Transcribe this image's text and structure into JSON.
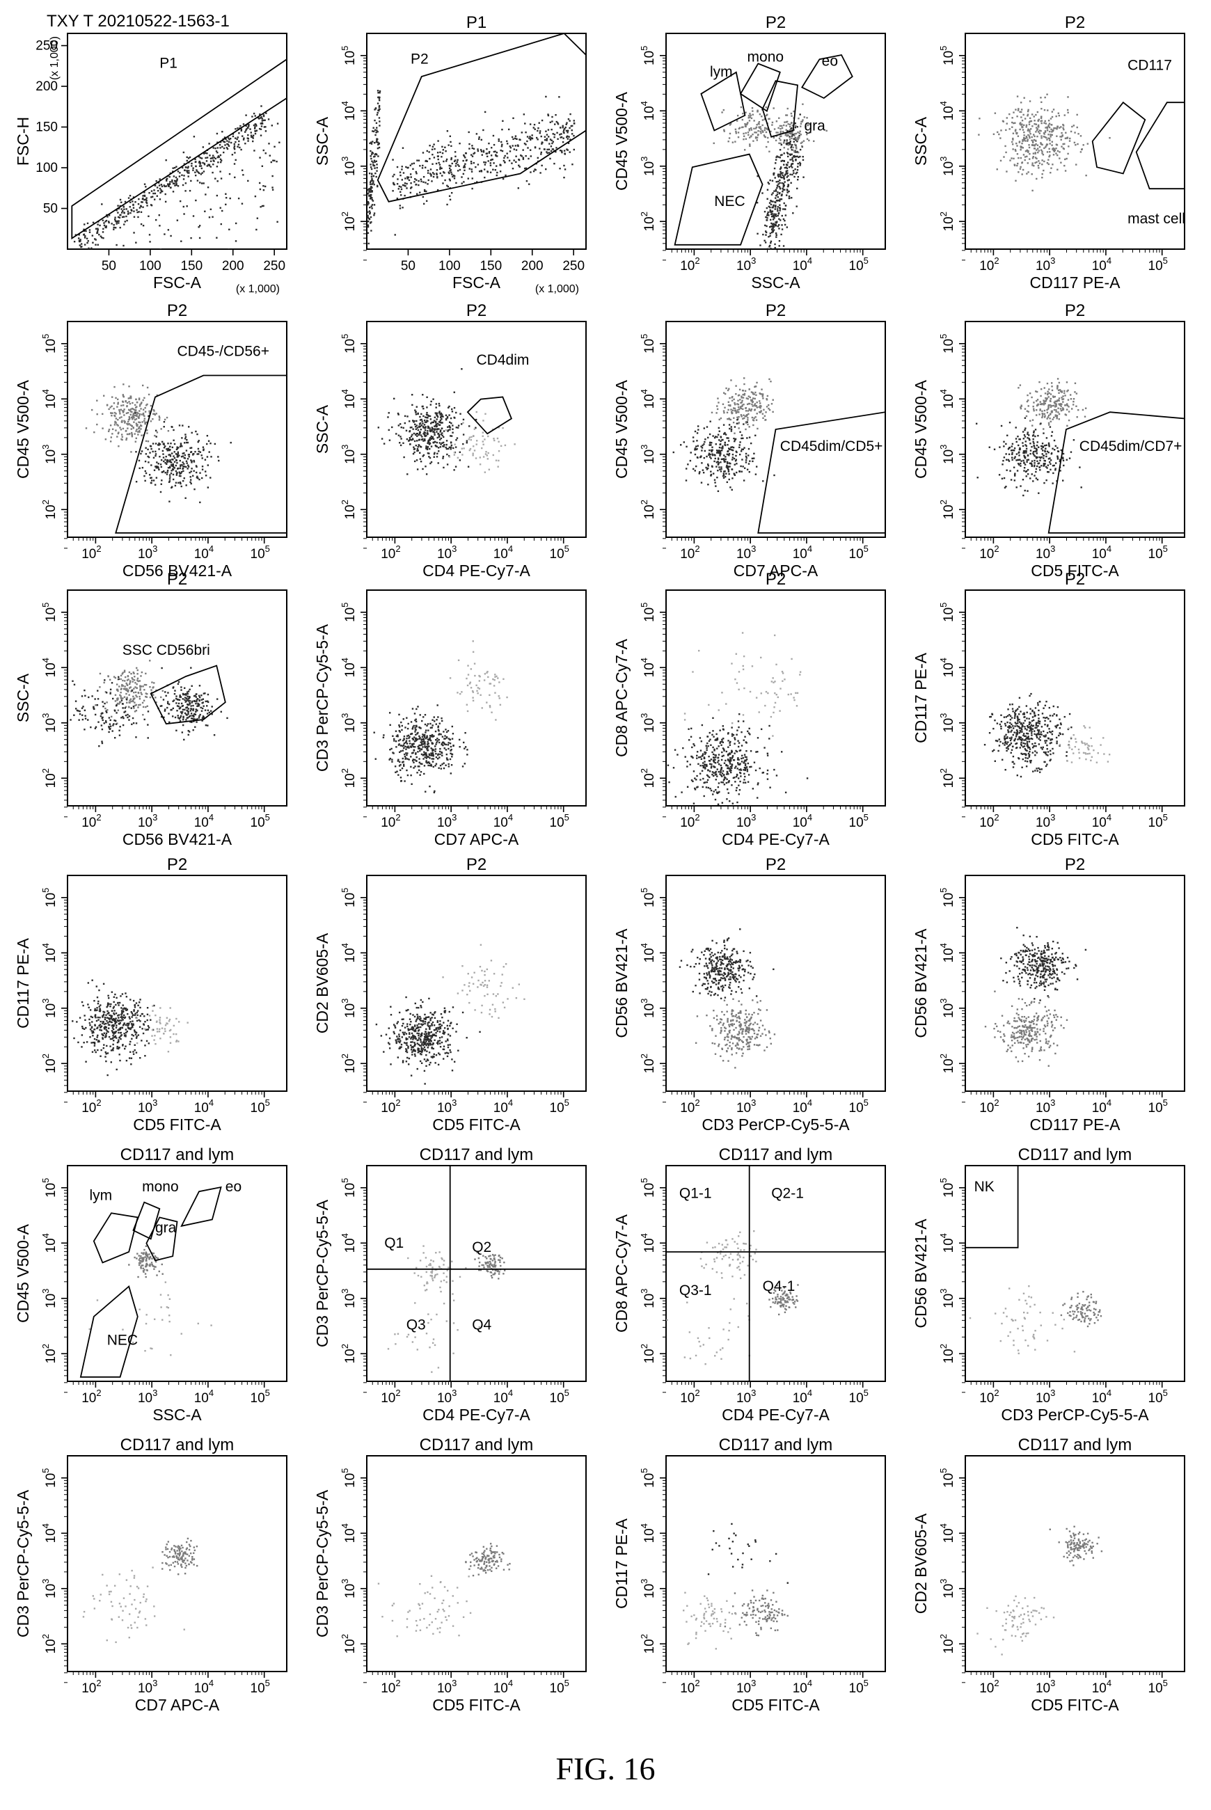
{
  "figure_label": "FIG. 16",
  "sample_id": "TXY T 20210522-1563-1",
  "colors": {
    "ink": "#000000",
    "population_dark": "#2a2a2a",
    "population_gray": "#7a7a7a",
    "population_light": "#a8a8a8"
  },
  "chart_data": [
    {
      "type": "scatter",
      "title": "",
      "xlabel": "FSC-A",
      "ylabel": "FSC-H",
      "scale": "linear",
      "xticks": [
        "50",
        "100",
        "150",
        "200",
        "250"
      ],
      "yticks": [
        "50",
        "100",
        "150",
        "200",
        "250"
      ],
      "xmult": "(x 1,000)",
      "ymult": "(x 1,000)",
      "gates": [
        "P1"
      ],
      "populations": [
        {
          "shade": "dark",
          "x": [
            10,
            240
          ],
          "y": [
            8,
            160
          ],
          "spread": 8,
          "n": 420
        },
        {
          "shade": "dark",
          "x": [
            60,
            250
          ],
          "y": [
            10,
            110
          ],
          "spread": 40,
          "n": 140
        }
      ]
    },
    {
      "type": "scatter",
      "title": "P1",
      "xlabel": "FSC-A",
      "ylabel": "SSC-A",
      "scale": "lin-log",
      "xticks": [
        "50",
        "100",
        "150",
        "200",
        "250"
      ],
      "yticks": [
        "10^2",
        "10^3",
        "10^4",
        "10^5"
      ],
      "xmult": "(x 1,000)",
      "gates": [
        "P2"
      ],
      "populations": [
        {
          "shade": "dark",
          "x": [
            30,
            250
          ],
          "y": [
            2.7,
            3.6
          ],
          "spread": 0.25,
          "n": 500
        },
        {
          "shade": "dark",
          "x": [
            0,
            15
          ],
          "y": [
            2,
            4
          ],
          "spread": 0.4,
          "n": 160
        }
      ]
    },
    {
      "type": "scatter",
      "title": "P2",
      "xlabel": "SSC-A",
      "ylabel": "CD45 V500-A",
      "scale": "log",
      "xticks": [
        "10^2",
        "10^3",
        "10^4",
        "10^5"
      ],
      "yticks": [
        "10^2",
        "10^3",
        "10^4",
        "10^5"
      ],
      "gates": [
        "lym",
        "mono",
        "eo",
        "gra",
        "NEC"
      ],
      "populations": [
        {
          "shade": "gray",
          "x": [
            3.0
          ],
          "y": [
            3.7
          ],
          "spread": 0.2,
          "n": 120
        },
        {
          "shade": "dark",
          "x": [
            3.3,
            3.8
          ],
          "y": [
            1.8,
            3.5
          ],
          "spread": 0.3,
          "n": 350
        },
        {
          "shade": "gray",
          "x": [
            3.7
          ],
          "y": [
            3.6
          ],
          "spread": 0.18,
          "n": 120
        }
      ]
    },
    {
      "type": "scatter",
      "title": "P2",
      "xlabel": "CD117 PE-A",
      "ylabel": "SSC-A",
      "scale": "log",
      "xticks": [
        "10^2",
        "10^3",
        "10^4",
        "10^5"
      ],
      "yticks": [
        "10^2",
        "10^3",
        "10^4",
        "10^5"
      ],
      "gates": [
        "CD117",
        "mast cell"
      ],
      "populations": [
        {
          "shade": "gray",
          "x": [
            2.8
          ],
          "y": [
            3.5
          ],
          "spread": 0.35,
          "n": 380
        }
      ]
    },
    {
      "type": "scatter",
      "title": "P2",
      "xlabel": "CD56 BV421-A",
      "ylabel": "CD45 V500-A",
      "scale": "log",
      "xticks": [
        "10^2",
        "10^3",
        "10^4",
        "10^5"
      ],
      "yticks": [
        "10^2",
        "10^3",
        "10^4",
        "10^5"
      ],
      "gates": [
        "CD45-/CD56+"
      ],
      "populations": [
        {
          "shade": "gray",
          "x": [
            2.6
          ],
          "y": [
            3.7
          ],
          "spread": 0.25,
          "n": 250
        },
        {
          "shade": "dark",
          "x": [
            3.4
          ],
          "y": [
            2.9
          ],
          "spread": 0.3,
          "n": 300
        }
      ]
    },
    {
      "type": "scatter",
      "title": "P2",
      "xlabel": "CD4 PE-Cy7-A",
      "ylabel": "SSC-A",
      "scale": "log",
      "xticks": [
        "10^2",
        "10^3",
        "10^4",
        "10^5"
      ],
      "yticks": [
        "10^2",
        "10^3",
        "10^4",
        "10^5"
      ],
      "gates": [
        "CD4dim"
      ],
      "populations": [
        {
          "shade": "dark",
          "x": [
            2.6
          ],
          "y": [
            3.4
          ],
          "spread": 0.3,
          "n": 380
        },
        {
          "shade": "light",
          "x": [
            3.5
          ],
          "y": [
            3.2
          ],
          "spread": 0.25,
          "n": 60
        }
      ]
    },
    {
      "type": "scatter",
      "title": "P2",
      "xlabel": "CD7 APC-A",
      "ylabel": "CD45 V500-A",
      "scale": "log",
      "xticks": [
        "10^2",
        "10^3",
        "10^4",
        "10^5"
      ],
      "yticks": [
        "10^2",
        "10^3",
        "10^4",
        "10^5"
      ],
      "gates": [
        "CD45dim/CD5+"
      ],
      "populations": [
        {
          "shade": "gray",
          "x": [
            2.9
          ],
          "y": [
            3.9
          ],
          "spread": 0.22,
          "n": 200
        },
        {
          "shade": "dark",
          "x": [
            2.5
          ],
          "y": [
            3.0
          ],
          "spread": 0.3,
          "n": 280
        }
      ]
    },
    {
      "type": "scatter",
      "title": "P2",
      "xlabel": "CD5 FITC-A",
      "ylabel": "CD45 V500-A",
      "scale": "log",
      "xticks": [
        "10^2",
        "10^3",
        "10^4",
        "10^5"
      ],
      "yticks": [
        "10^2",
        "10^3",
        "10^4",
        "10^5"
      ],
      "gates": [
        "CD45dim/CD7+"
      ],
      "populations": [
        {
          "shade": "gray",
          "x": [
            3.0
          ],
          "y": [
            3.9
          ],
          "spread": 0.22,
          "n": 200
        },
        {
          "shade": "dark",
          "x": [
            2.7
          ],
          "y": [
            3.0
          ],
          "spread": 0.3,
          "n": 280
        }
      ]
    },
    {
      "type": "scatter",
      "title": "P2",
      "xlabel": "CD56 BV421-A",
      "ylabel": "SSC-A",
      "scale": "log",
      "xticks": [
        "10^2",
        "10^3",
        "10^4",
        "10^5"
      ],
      "yticks": [
        "10^2",
        "10^3",
        "10^4",
        "10^5"
      ],
      "gates": [
        "SSC CD56bri"
      ],
      "populations": [
        {
          "shade": "gray",
          "x": [
            2.6
          ],
          "y": [
            3.6
          ],
          "spread": 0.22,
          "n": 180
        },
        {
          "shade": "dark",
          "x": [
            3.6
          ],
          "y": [
            3.3
          ],
          "spread": 0.22,
          "n": 220
        },
        {
          "shade": "dark",
          "x": [
            2.2
          ],
          "y": [
            3.2
          ],
          "spread": 0.3,
          "n": 120
        }
      ]
    },
    {
      "type": "scatter",
      "title": "",
      "xlabel": "CD7 APC-A",
      "ylabel": "CD3 PerCP-Cy5-5-A",
      "scale": "log",
      "xticks": [
        "10^2",
        "10^3",
        "10^4",
        "10^5"
      ],
      "yticks": [
        "10^2",
        "10^3",
        "10^4",
        "10^5"
      ],
      "gates": [],
      "populations": [
        {
          "shade": "dark",
          "x": [
            2.5
          ],
          "y": [
            2.6
          ],
          "spread": 0.3,
          "n": 420
        },
        {
          "shade": "light",
          "x": [
            3.5
          ],
          "y": [
            3.6
          ],
          "spread": 0.3,
          "n": 60
        }
      ]
    },
    {
      "type": "scatter",
      "title": "P2",
      "xlabel": "CD4 PE-Cy7-A",
      "ylabel": "CD8 APC-Cy7-A",
      "scale": "log",
      "xticks": [
        "10^2",
        "10^3",
        "10^4",
        "10^5"
      ],
      "yticks": [
        "10^2",
        "10^3",
        "10^4",
        "10^5"
      ],
      "gates": [],
      "populations": [
        {
          "shade": "dark",
          "x": [
            2.5
          ],
          "y": [
            2.3
          ],
          "spread": 0.35,
          "n": 400
        },
        {
          "shade": "light",
          "x": [
            3.2
          ],
          "y": [
            3.6
          ],
          "spread": 0.5,
          "n": 60
        }
      ]
    },
    {
      "type": "scatter",
      "title": "P2",
      "xlabel": "CD5 FITC-A",
      "ylabel": "CD117 PE-A",
      "scale": "log",
      "xticks": [
        "10^2",
        "10^3",
        "10^4",
        "10^5"
      ],
      "yticks": [
        "10^2",
        "10^3",
        "10^4",
        "10^5"
      ],
      "gates": [],
      "populations": [
        {
          "shade": "dark",
          "x": [
            2.6
          ],
          "y": [
            2.8
          ],
          "spread": 0.3,
          "n": 420
        },
        {
          "shade": "light",
          "x": [
            3.6
          ],
          "y": [
            2.6
          ],
          "spread": 0.2,
          "n": 50
        }
      ]
    },
    {
      "type": "scatter",
      "title": "P2",
      "xlabel": "CD5 FITC-A",
      "ylabel": "CD117 PE-A",
      "scale": "log",
      "xticks": [
        "10^2",
        "10^3",
        "10^4",
        "10^5"
      ],
      "yticks": [
        "10^2",
        "10^3",
        "10^4",
        "10^5"
      ],
      "gates": [],
      "populations": [
        {
          "shade": "dark",
          "x": [
            2.3
          ],
          "y": [
            2.7
          ],
          "spread": 0.3,
          "n": 420
        },
        {
          "shade": "light",
          "x": [
            3.2
          ],
          "y": [
            2.7
          ],
          "spread": 0.2,
          "n": 50
        }
      ]
    },
    {
      "type": "scatter",
      "title": "P2",
      "xlabel": "CD5 FITC-A",
      "ylabel": "CD2 BV605-A",
      "scale": "log",
      "xticks": [
        "10^2",
        "10^3",
        "10^4",
        "10^5"
      ],
      "yticks": [
        "10^2",
        "10^3",
        "10^4",
        "10^5"
      ],
      "gates": [],
      "populations": [
        {
          "shade": "dark",
          "x": [
            2.5
          ],
          "y": [
            2.5
          ],
          "spread": 0.28,
          "n": 420
        },
        {
          "shade": "light",
          "x": [
            3.6
          ],
          "y": [
            3.4
          ],
          "spread": 0.3,
          "n": 60
        }
      ]
    },
    {
      "type": "scatter",
      "title": "P2",
      "xlabel": "CD3 PerCP-Cy5-5-A",
      "ylabel": "CD56 BV421-A",
      "scale": "log",
      "xticks": [
        "10^2",
        "10^3",
        "10^4",
        "10^5"
      ],
      "yticks": [
        "10^2",
        "10^3",
        "10^4",
        "10^5"
      ],
      "gates": [],
      "populations": [
        {
          "shade": "dark",
          "x": [
            2.5
          ],
          "y": [
            3.7
          ],
          "spread": 0.25,
          "n": 300
        },
        {
          "shade": "gray",
          "x": [
            2.8
          ],
          "y": [
            2.6
          ],
          "spread": 0.25,
          "n": 250
        }
      ]
    },
    {
      "type": "scatter",
      "title": "P2",
      "xlabel": "CD117 PE-A",
      "ylabel": "CD56 BV421-A",
      "scale": "log",
      "xticks": [
        "10^2",
        "10^3",
        "10^4",
        "10^5"
      ],
      "yticks": [
        "10^2",
        "10^3",
        "10^4",
        "10^5"
      ],
      "gates": [],
      "populations": [
        {
          "shade": "dark",
          "x": [
            2.8
          ],
          "y": [
            3.8
          ],
          "spread": 0.25,
          "n": 300
        },
        {
          "shade": "gray",
          "x": [
            2.6
          ],
          "y": [
            2.6
          ],
          "spread": 0.25,
          "n": 250
        }
      ]
    },
    {
      "type": "scatter",
      "title": "CD117 and lym",
      "xlabel": "SSC-A",
      "ylabel": "CD45 V500-A",
      "scale": "log",
      "xticks": [
        "10^2",
        "10^3",
        "10^4",
        "10^5"
      ],
      "yticks": [
        "10^2",
        "10^3",
        "10^4",
        "10^5"
      ],
      "gates": [
        "lym",
        "mono",
        "eo",
        "gra",
        "NEC"
      ],
      "populations": [
        {
          "shade": "gray",
          "x": [
            2.9
          ],
          "y": [
            3.7
          ],
          "spread": 0.12,
          "n": 90
        },
        {
          "shade": "light",
          "x": [
            3.0
          ],
          "y": [
            2.6
          ],
          "spread": 0.4,
          "n": 25
        }
      ]
    },
    {
      "type": "scatter",
      "title": "CD117 and lym",
      "xlabel": "CD4 PE-Cy7-A",
      "ylabel": "CD3 PerCP-Cy5-5-A",
      "scale": "log",
      "xticks": [
        "10^2",
        "10^3",
        "10^4",
        "10^5"
      ],
      "yticks": [
        "10^2",
        "10^3",
        "10^4",
        "10^5"
      ],
      "gates": [
        "Q1",
        "Q2",
        "Q3",
        "Q4"
      ],
      "populations": [
        {
          "shade": "light",
          "x": [
            2.7
          ],
          "y": [
            3.5
          ],
          "spread": 0.2,
          "n": 60
        },
        {
          "shade": "gray",
          "x": [
            3.7
          ],
          "y": [
            3.6
          ],
          "spread": 0.12,
          "n": 80
        },
        {
          "shade": "light",
          "x": [
            2.5
          ],
          "y": [
            2.5
          ],
          "spread": 0.4,
          "n": 30
        }
      ]
    },
    {
      "type": "scatter",
      "title": "CD117 and lym",
      "xlabel": "CD4 PE-Cy7-A",
      "ylabel": "CD8 APC-Cy7-A",
      "scale": "log",
      "xticks": [
        "10^2",
        "10^3",
        "10^4",
        "10^5"
      ],
      "yticks": [
        "10^2",
        "10^3",
        "10^4",
        "10^5"
      ],
      "gates": [
        "Q1-1",
        "Q2-1",
        "Q3-1",
        "Q4-1"
      ],
      "populations": [
        {
          "shade": "light",
          "x": [
            2.6
          ],
          "y": [
            3.8
          ],
          "spread": 0.22,
          "n": 70
        },
        {
          "shade": "gray",
          "x": [
            3.6
          ],
          "y": [
            3.0
          ],
          "spread": 0.12,
          "n": 80
        },
        {
          "shade": "light",
          "x": [
            2.4
          ],
          "y": [
            2.4
          ],
          "spread": 0.4,
          "n": 30
        }
      ]
    },
    {
      "type": "scatter",
      "title": "CD117 and lym",
      "xlabel": "CD3 PerCP-Cy5-5-A",
      "ylabel": "CD56 BV421-A",
      "scale": "log",
      "xticks": [
        "10^2",
        "10^3",
        "10^4",
        "10^5"
      ],
      "yticks": [
        "10^2",
        "10^3",
        "10^4",
        "10^5"
      ],
      "gates": [
        "NK"
      ],
      "populations": [
        {
          "shade": "gray",
          "x": [
            3.6
          ],
          "y": [
            2.8
          ],
          "spread": 0.15,
          "n": 90
        },
        {
          "shade": "light",
          "x": [
            2.6
          ],
          "y": [
            2.6
          ],
          "spread": 0.35,
          "n": 50
        }
      ]
    },
    {
      "type": "scatter",
      "title": "CD117 and lym",
      "xlabel": "CD7 APC-A",
      "ylabel": "CD3 PerCP-Cy5-5-A",
      "scale": "log",
      "xticks": [
        "10^2",
        "10^3",
        "10^4",
        "10^5"
      ],
      "yticks": [
        "10^2",
        "10^3",
        "10^4",
        "10^5"
      ],
      "gates": [],
      "populations": [
        {
          "shade": "gray",
          "x": [
            3.5
          ],
          "y": [
            3.6
          ],
          "spread": 0.15,
          "n": 110
        },
        {
          "shade": "light",
          "x": [
            2.5
          ],
          "y": [
            2.7
          ],
          "spread": 0.35,
          "n": 60
        }
      ]
    },
    {
      "type": "scatter",
      "title": "CD117 and lym",
      "xlabel": "CD5 FITC-A",
      "ylabel": "CD3 PerCP-Cy5-5-A",
      "scale": "log",
      "xticks": [
        "10^2",
        "10^3",
        "10^4",
        "10^5"
      ],
      "yticks": [
        "10^2",
        "10^3",
        "10^4",
        "10^5"
      ],
      "gates": [],
      "populations": [
        {
          "shade": "gray",
          "x": [
            3.6
          ],
          "y": [
            3.5
          ],
          "spread": 0.15,
          "n": 110
        },
        {
          "shade": "light",
          "x": [
            2.6
          ],
          "y": [
            2.6
          ],
          "spread": 0.35,
          "n": 60
        }
      ]
    },
    {
      "type": "scatter",
      "title": "CD117 and lym",
      "xlabel": "CD5 FITC-A",
      "ylabel": "CD117 PE-A",
      "scale": "log",
      "xticks": [
        "10^2",
        "10^3",
        "10^4",
        "10^5"
      ],
      "yticks": [
        "10^2",
        "10^3",
        "10^4",
        "10^5"
      ],
      "gates": [],
      "populations": [
        {
          "shade": "gray",
          "x": [
            3.2
          ],
          "y": [
            2.6
          ],
          "spread": 0.2,
          "n": 110
        },
        {
          "shade": "light",
          "x": [
            2.3
          ],
          "y": [
            2.5
          ],
          "spread": 0.25,
          "n": 60
        },
        {
          "shade": "dark",
          "x": [
            2.8
          ],
          "y": [
            3.7
          ],
          "spread": 0.3,
          "n": 25
        }
      ]
    },
    {
      "type": "scatter",
      "title": "CD117 and lym",
      "xlabel": "CD5 FITC-A",
      "ylabel": "CD2 BV605-A",
      "scale": "log",
      "xticks": [
        "10^2",
        "10^3",
        "10^4",
        "10^5"
      ],
      "yticks": [
        "10^2",
        "10^3",
        "10^4",
        "10^5"
      ],
      "gates": [],
      "populations": [
        {
          "shade": "gray",
          "x": [
            3.5
          ],
          "y": [
            3.8
          ],
          "spread": 0.15,
          "n": 110
        },
        {
          "shade": "light",
          "x": [
            2.4
          ],
          "y": [
            2.5
          ],
          "spread": 0.25,
          "n": 70
        }
      ]
    }
  ]
}
